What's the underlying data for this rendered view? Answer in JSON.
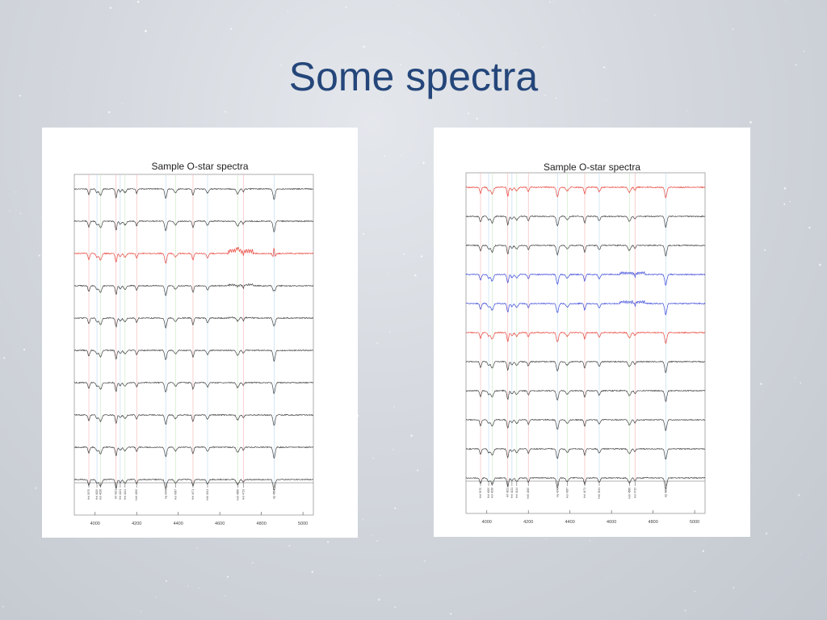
{
  "slide": {
    "title": "Some spectra"
  },
  "colors": {
    "title": "#24467a",
    "red": "#e8453c",
    "blue": "#3b48d8",
    "black": "#444444",
    "grey": "#888888"
  },
  "panels": [
    {
      "title": "Sample O-star spectra",
      "line_ids": [
        "HeI 3970",
        "HeI 4009",
        "HeI 4026",
        "Hδ 4101",
        "HeI 4121",
        "HeI 4144",
        "HeII 4200",
        "Hγ 4340",
        "HeI 4387",
        "HeI 4471",
        "HeII 4541",
        "HeII 4686",
        "HeI 4713",
        "Hβ 4861"
      ],
      "xticks": [
        "4000",
        "4200",
        "4400",
        "4600",
        "4800",
        "5000"
      ]
    },
    {
      "title": "Sample O-star spectra",
      "line_ids": [
        "HeI 3970",
        "HeI 4009",
        "HeI 4026",
        "Hδ 4101",
        "HeI 4121",
        "HeI 4144",
        "HeII 4200",
        "Hγ 4340",
        "HeI 4387",
        "HeI 4471",
        "HeII 4541",
        "HeII 4686",
        "HeI 4713",
        "Hβ 4861"
      ],
      "xticks": [
        "4000",
        "4200",
        "4400",
        "4600",
        "4800",
        "5000"
      ]
    }
  ],
  "chart_data": [
    {
      "type": "line",
      "title": "Sample O-star spectra",
      "xlabel": "",
      "ylabel": "",
      "xlim": [
        3900,
        5050
      ],
      "xticks": [
        4000,
        4200,
        4400,
        4600,
        4800,
        5000
      ],
      "grid": false,
      "lines_marked": [
        3970,
        4009,
        4026,
        4101,
        4121,
        4144,
        4200,
        4340,
        4387,
        4471,
        4541,
        4686,
        4713,
        4861
      ],
      "series": [
        {
          "color": "black",
          "emission": 0
        },
        {
          "color": "black",
          "emission": 0
        },
        {
          "color": "red",
          "emission": 1
        },
        {
          "color": "black",
          "emission": 0.4
        },
        {
          "color": "black",
          "emission": 0.2
        },
        {
          "color": "black",
          "emission": 0
        },
        {
          "color": "black",
          "emission": 0
        },
        {
          "color": "black",
          "emission": 0
        },
        {
          "color": "black",
          "emission": 0
        },
        {
          "color": "black",
          "emission": 0
        }
      ]
    },
    {
      "type": "line",
      "title": "Sample O-star spectra",
      "xlabel": "",
      "ylabel": "",
      "xlim": [
        3900,
        5050
      ],
      "xticks": [
        4000,
        4200,
        4400,
        4600,
        4800,
        5000
      ],
      "grid": false,
      "lines_marked": [
        3970,
        4009,
        4026,
        4101,
        4121,
        4144,
        4200,
        4340,
        4387,
        4471,
        4541,
        4686,
        4713,
        4861
      ],
      "series": [
        {
          "color": "red",
          "emission": 0
        },
        {
          "color": "black",
          "emission": 0
        },
        {
          "color": "black",
          "emission": 0
        },
        {
          "color": "blue",
          "emission": 0.6
        },
        {
          "color": "blue",
          "emission": 0.6
        },
        {
          "color": "red",
          "emission": 0
        },
        {
          "color": "black",
          "emission": 0
        },
        {
          "color": "black",
          "emission": 0
        },
        {
          "color": "black",
          "emission": 0
        },
        {
          "color": "black",
          "emission": 0
        },
        {
          "color": "black",
          "emission": 0
        }
      ]
    }
  ]
}
